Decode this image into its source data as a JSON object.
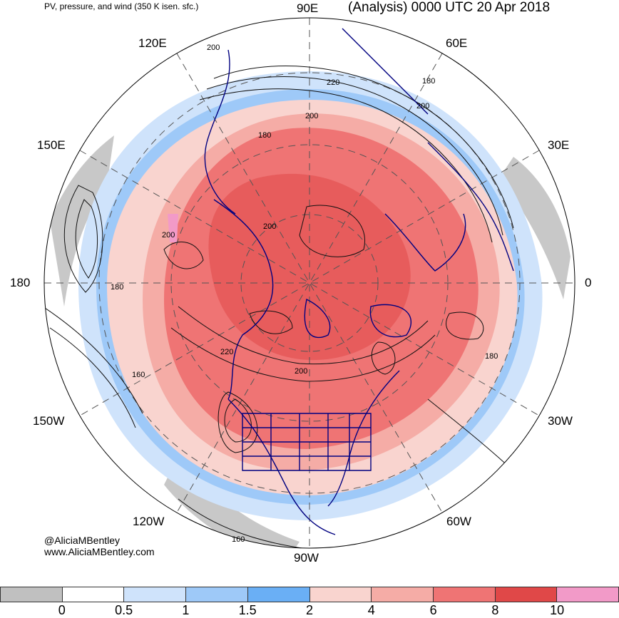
{
  "header": {
    "title": "PV, pressure, and wind (350 K isen. sfc.)",
    "analysis": "(Analysis) 0000 UTC 20 Apr 2018"
  },
  "map": {
    "projection": "north-polar-stereographic",
    "longitude_labels": {
      "e90": "90E",
      "e60": "60E",
      "e120": "120E",
      "e150": "150E",
      "e30": "30E",
      "deg180": "180",
      "deg0": "0",
      "w150": "150W",
      "w30": "30W",
      "w120": "120W",
      "w60": "60W",
      "w90": "90W"
    },
    "contour_labels": [
      "200",
      "220",
      "180",
      "200",
      "200",
      "180",
      "200",
      "200",
      "180",
      "220",
      "200",
      "180",
      "160",
      "160"
    ]
  },
  "credits": {
    "handle": "@AliciaMBentley",
    "website": "www.AliciaMBentley.com"
  },
  "colorbar": {
    "colors": [
      "#c0c0c0",
      "#ffffff",
      "#cfe3fb",
      "#9ec9f8",
      "#6aaff5",
      "#f9d4cf",
      "#f5aca6",
      "#ef7474",
      "#e04848",
      "#f29ac8"
    ],
    "ticks": [
      "0",
      "0.5",
      "1",
      "1.5",
      "2",
      "4",
      "6",
      "8",
      "10"
    ]
  }
}
